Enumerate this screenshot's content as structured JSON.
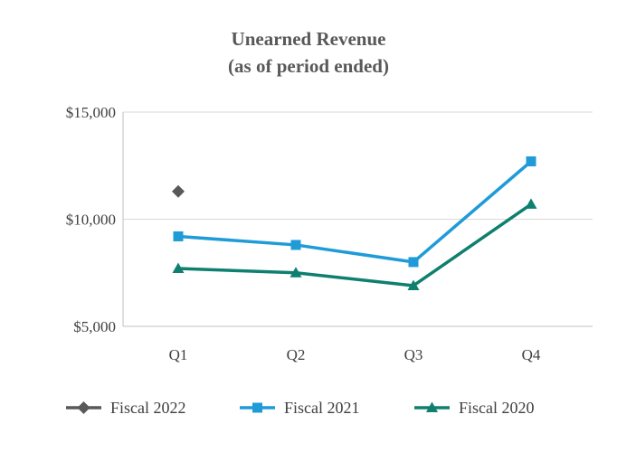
{
  "chart_data": {
    "type": "line",
    "title_lines": [
      "Unearned Revenue",
      "(as of period ended)"
    ],
    "categories": [
      "Q1",
      "Q2",
      "Q3",
      "Q4"
    ],
    "ylim": [
      5000,
      15000
    ],
    "yticks": [
      5000,
      10000,
      15000
    ],
    "ytick_labels": [
      "$5,000",
      "$10,000",
      "$15,000"
    ],
    "grid": true,
    "legend_position": "bottom",
    "xlabel": "",
    "ylabel": "",
    "series": [
      {
        "name": "Fiscal 2022",
        "values": [
          11300,
          null,
          null,
          null
        ],
        "color": "#595959",
        "marker": "diamond"
      },
      {
        "name": "Fiscal 2021",
        "values": [
          9200,
          8800,
          8000,
          12700
        ],
        "color": "#1f9bd7",
        "marker": "square"
      },
      {
        "name": "Fiscal 2020",
        "values": [
          7700,
          7500,
          6900,
          10700
        ],
        "color": "#0f7f6f",
        "marker": "triangle"
      }
    ]
  }
}
